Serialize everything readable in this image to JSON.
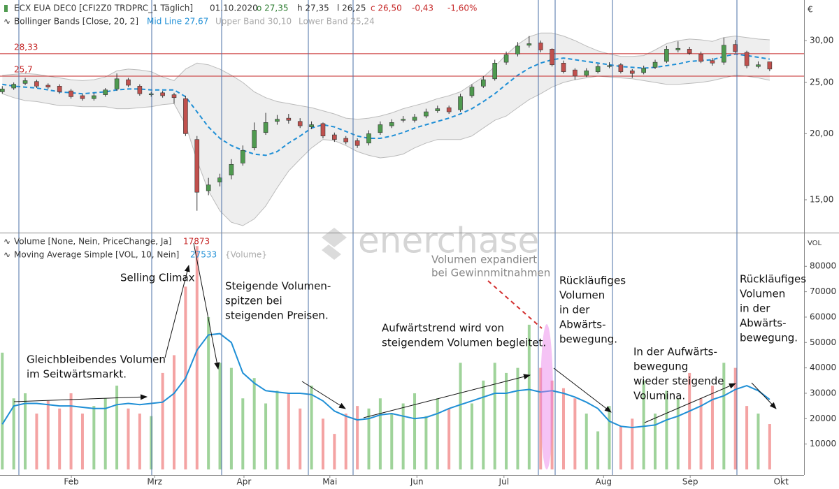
{
  "watermark": "enerchase",
  "chart_data": [
    {
      "type": "candlestick",
      "title": "ECX EUA DEC0 [CFI2Z0 TRDPRC_1 Täglich]",
      "date": "01.10.2020",
      "quote": [
        "o 27,35",
        "h 27,35",
        "l 26,25",
        "c 26,50",
        "-0,43",
        "-1,60%"
      ],
      "y_unit": "€",
      "yscale": "log",
      "xlim": [
        -0.2,
        70
      ],
      "ylim": [
        13,
        35.8
      ],
      "yticks": [
        {
          "value": 15,
          "label": "15,00"
        },
        {
          "value": 20,
          "label": "20,00"
        },
        {
          "value": 25,
          "label": "25,00"
        },
        {
          "value": 30,
          "label": "30,00"
        }
      ],
      "up_color": "#4f9a4f",
      "down_color": "#c0504d",
      "open": [
        24.0,
        24.4,
        24.9,
        25.1,
        24.7,
        24.6,
        24.1,
        23.6,
        23.3,
        23.7,
        24.3,
        25.3,
        24.6,
        23.7,
        23.9,
        23.7,
        23.3,
        19.5,
        15.6,
        16.2,
        16.7,
        17.6,
        18.8,
        20.1,
        21.1,
        21.4,
        21.1,
        20.6,
        20.9,
        19.9,
        19.6,
        19.4,
        19.2,
        20.1,
        20.7,
        21.2,
        21.2,
        21.6,
        22.1,
        22.4,
        22.2,
        23.6,
        24.6,
        25.4,
        27.3,
        28.3,
        29.4,
        29.7,
        28.9,
        27.2,
        26.4,
        25.8,
        26.2,
        26.8,
        27.0,
        26.3,
        26.1,
        26.7,
        27.4,
        28.8,
        28.9,
        28.3,
        27.5,
        27.3,
        29.5,
        28.5,
        26.8,
        27.35
      ],
      "high": [
        24.6,
        25.0,
        25.5,
        25.3,
        24.9,
        24.8,
        24.3,
        23.8,
        23.9,
        24.4,
        26.0,
        25.5,
        24.8,
        24.0,
        24.1,
        23.9,
        23.6,
        19.8,
        16.5,
        16.8,
        17.9,
        19.0,
        21.0,
        21.9,
        21.7,
        21.8,
        21.4,
        21.1,
        21.0,
        20.1,
        19.8,
        19.6,
        20.3,
        21.1,
        21.3,
        21.6,
        21.8,
        22.3,
        22.6,
        22.6,
        23.8,
        24.8,
        25.7,
        27.6,
        28.6,
        29.8,
        30.6,
        30.0,
        29.0,
        27.5,
        26.6,
        26.6,
        27.1,
        27.3,
        27.2,
        26.5,
        26.9,
        27.6,
        29.3,
        29.9,
        29.2,
        28.6,
        27.8,
        30.4,
        30.1,
        28.7,
        27.4,
        27.35
      ],
      "low": [
        23.8,
        24.2,
        24.7,
        24.4,
        24.3,
        23.8,
        23.3,
        23.1,
        23.1,
        23.5,
        24.1,
        24.5,
        23.6,
        23.5,
        23.4,
        22.8,
        19.8,
        14.3,
        15.3,
        15.9,
        16.4,
        17.4,
        18.6,
        19.9,
        20.8,
        20.9,
        20.5,
        20.4,
        19.6,
        19.3,
        19.1,
        18.8,
        19.0,
        19.9,
        20.5,
        21.0,
        21.0,
        21.4,
        21.9,
        21.8,
        22.0,
        23.4,
        24.4,
        25.2,
        27.0,
        28.0,
        29.1,
        28.5,
        26.8,
        26.0,
        25.3,
        25.6,
        26.0,
        26.6,
        26.0,
        25.5,
        25.9,
        26.5,
        27.2,
        28.5,
        28.2,
        27.2,
        26.9,
        27.0,
        28.4,
        26.6,
        26.6,
        26.25
      ],
      "close": [
        24.3,
        24.8,
        25.2,
        24.6,
        24.5,
        24.0,
        23.5,
        23.3,
        23.6,
        24.2,
        25.4,
        24.7,
        23.8,
        23.8,
        23.6,
        23.4,
        20.0,
        15.5,
        16.0,
        16.5,
        17.5,
        18.6,
        20.3,
        21.0,
        21.3,
        21.2,
        20.7,
        20.8,
        19.8,
        19.5,
        19.3,
        19.0,
        20.0,
        20.8,
        21.0,
        21.3,
        21.5,
        22.0,
        22.3,
        22.0,
        23.5,
        24.5,
        25.3,
        27.2,
        28.2,
        29.3,
        29.6,
        28.8,
        27.0,
        26.2,
        25.7,
        26.3,
        26.8,
        26.9,
        26.2,
        26.0,
        26.6,
        27.3,
        28.9,
        29.0,
        28.4,
        27.4,
        27.2,
        29.4,
        28.6,
        26.9,
        27.0,
        26.5
      ],
      "indicator": {
        "name": "Bollinger Bands [Close, 20, 2]",
        "band_color": "#eeeeee",
        "series": [
          {
            "name": "Mid Line 27,67",
            "color": "#1f8fd6",
            "values": [
              24.8,
              24.6,
              24.5,
              24.4,
              24.2,
              24.0,
              23.9,
              23.8,
              23.9,
              24.0,
              24.2,
              24.3,
              24.3,
              24.2,
              24.2,
              24.2,
              23.5,
              22.0,
              20.6,
              19.6,
              19.0,
              18.6,
              18.3,
              18.2,
              18.5,
              19.2,
              19.8,
              20.5,
              20.8,
              20.6,
              20.2,
              19.8,
              19.6,
              19.6,
              19.8,
              20.1,
              20.5,
              20.8,
              21.1,
              21.4,
              21.8,
              22.3,
              23.0,
              23.8,
              24.8,
              25.8,
              26.6,
              27.2,
              27.6,
              27.8,
              27.6,
              27.4,
              27.2,
              27.0,
              26.8,
              26.7,
              26.6,
              26.7,
              26.9,
              27.1,
              27.4,
              27.5,
              27.6,
              28.0,
              28.3,
              28.1,
              27.9,
              27.67
            ]
          },
          {
            "name": "Upper Band 30,10",
            "color": "#bbbbbb",
            "values": [
              25.8,
              25.9,
              26.0,
              25.9,
              25.7,
              25.5,
              25.3,
              25.2,
              25.3,
              25.6,
              26.3,
              26.5,
              26.4,
              26.2,
              25.6,
              25.2,
              26.5,
              27.2,
              27.0,
              26.5,
              25.8,
              25.0,
              24.0,
              23.4,
              23.0,
              22.8,
              22.6,
              22.4,
              22.1,
              21.8,
              21.4,
              21.3,
              21.4,
              21.6,
              21.9,
              22.3,
              22.6,
              22.9,
              23.3,
              23.6,
              24.0,
              24.8,
              25.6,
              26.8,
              28.2,
              29.5,
              30.5,
              31.0,
              31.0,
              30.6,
              30.0,
              29.3,
              28.7,
              28.3,
              28.0,
              28.0,
              28.1,
              28.8,
              29.6,
              30.0,
              30.2,
              30.1,
              29.9,
              30.4,
              30.6,
              30.4,
              30.2,
              30.1
            ]
          },
          {
            "name": "Lower Band 25,24",
            "color": "#bbbbbb",
            "values": [
              23.8,
              23.4,
              23.1,
              23.0,
              22.8,
              22.6,
              22.6,
              22.5,
              22.5,
              22.5,
              22.3,
              22.3,
              22.4,
              22.5,
              22.7,
              22.8,
              20.8,
              17.8,
              15.6,
              14.3,
              13.6,
              13.4,
              13.8,
              14.6,
              15.8,
              17.0,
              17.9,
              18.8,
              19.5,
              19.4,
              19.0,
              18.5,
              18.2,
              18.0,
              18.1,
              18.3,
              18.8,
              19.2,
              19.5,
              19.5,
              19.5,
              19.8,
              20.5,
              21.2,
              21.6,
              22.4,
              23.2,
              23.8,
              24.5,
              25.0,
              25.3,
              25.5,
              25.7,
              25.6,
              25.5,
              25.4,
              25.2,
              25.0,
              24.8,
              24.8,
              24.9,
              25.0,
              25.2,
              25.5,
              25.8,
              25.7,
              25.5,
              25.24
            ]
          }
        ]
      },
      "hlines": [
        {
          "value": 28.33,
          "label": "28,33"
        },
        {
          "value": 25.7,
          "label": "25,7"
        }
      ],
      "hline_color": "#c62828"
    },
    {
      "type": "bar",
      "y_unit": "VOL",
      "xlim": [
        -0.2,
        70
      ],
      "ylim": [
        0,
        93000
      ],
      "yticks": [
        10000,
        20000,
        30000,
        40000,
        50000,
        60000,
        70000,
        80000
      ],
      "xticks": [
        {
          "value": 6.03,
          "label": "Feb"
        },
        {
          "value": 13.3,
          "label": "Mrz"
        },
        {
          "value": 21.1,
          "label": "Apr"
        },
        {
          "value": 28.6,
          "label": "Mai"
        },
        {
          "value": 36.2,
          "label": "Jun"
        },
        {
          "value": 43.8,
          "label": "Jul"
        },
        {
          "value": 52.5,
          "label": "Aug"
        },
        {
          "value": 60.06,
          "label": "Sep"
        },
        {
          "value": 68.0,
          "label": "Okt"
        }
      ],
      "series": [
        {
          "name": "Volume [None, Nein, PriceChange, Ja]",
          "up_color": "#9fd39a",
          "down_color": "#f4a3a3",
          "label_color": "#c62828",
          "values": [
            46000,
            28000,
            30000,
            22000,
            27000,
            24000,
            30000,
            22000,
            25000,
            28000,
            33000,
            24000,
            22000,
            21000,
            38000,
            45000,
            72000,
            88000,
            60000,
            42000,
            40000,
            28000,
            36000,
            26000,
            31000,
            30000,
            24000,
            33000,
            20000,
            14000,
            22000,
            25000,
            24000,
            28000,
            22000,
            26000,
            30000,
            21000,
            28000,
            24000,
            42000,
            26000,
            35000,
            42000,
            38000,
            40000,
            57000,
            40000,
            35000,
            32000,
            28000,
            22000,
            15000,
            25000,
            17000,
            20000,
            35000,
            22000,
            31000,
            28000,
            38000,
            28000,
            33000,
            42000,
            40000,
            25000,
            22000,
            17873
          ]
        },
        {
          "name": "Moving Average Simple [VOL, 10, Nein]",
          "type": "line",
          "color": "#1f8fd6",
          "source": "{Volume}",
          "values": [
            17800,
            25000,
            26000,
            26000,
            25500,
            25000,
            25000,
            24500,
            24000,
            24000,
            25500,
            26000,
            25500,
            26000,
            26500,
            30000,
            36000,
            47000,
            53000,
            53500,
            50000,
            38000,
            34000,
            31000,
            30500,
            30000,
            30000,
            29500,
            27000,
            23000,
            21000,
            19500,
            20000,
            21500,
            22000,
            21000,
            20000,
            20500,
            22000,
            24000,
            25500,
            27000,
            28500,
            30000,
            30000,
            31000,
            31500,
            30500,
            31000,
            30000,
            28500,
            26500,
            24000,
            19000,
            17000,
            16500,
            17000,
            17500,
            19500,
            21000,
            23000,
            25000,
            27500,
            29000,
            31500,
            33000,
            31000,
            27533
          ]
        }
      ],
      "annotations": [
        [
          "Selling Climax"
        ],
        [
          "Steigende Volumen-",
          "spitzen bei",
          "steigenden Preisen."
        ],
        [
          "Gleichbleibendes Volumen",
          "im Seitwärtsmarkt."
        ],
        [
          "Aufwärtstrend wird von",
          "steigendem Volumen begleitet."
        ],
        [
          "Volumen expandiert",
          "bei Gewinnmitnahmen"
        ],
        [
          "Rückläufiges",
          "Volumen",
          "in der",
          "Abwärts-",
          "bewegung."
        ],
        [
          "In der Aufwärts-",
          "bewegung",
          "wieder steigende",
          "Volumina."
        ],
        [
          "Rückläufiges",
          "Volumen",
          "in der",
          "Abwärts-",
          "bewegung."
        ]
      ]
    }
  ]
}
